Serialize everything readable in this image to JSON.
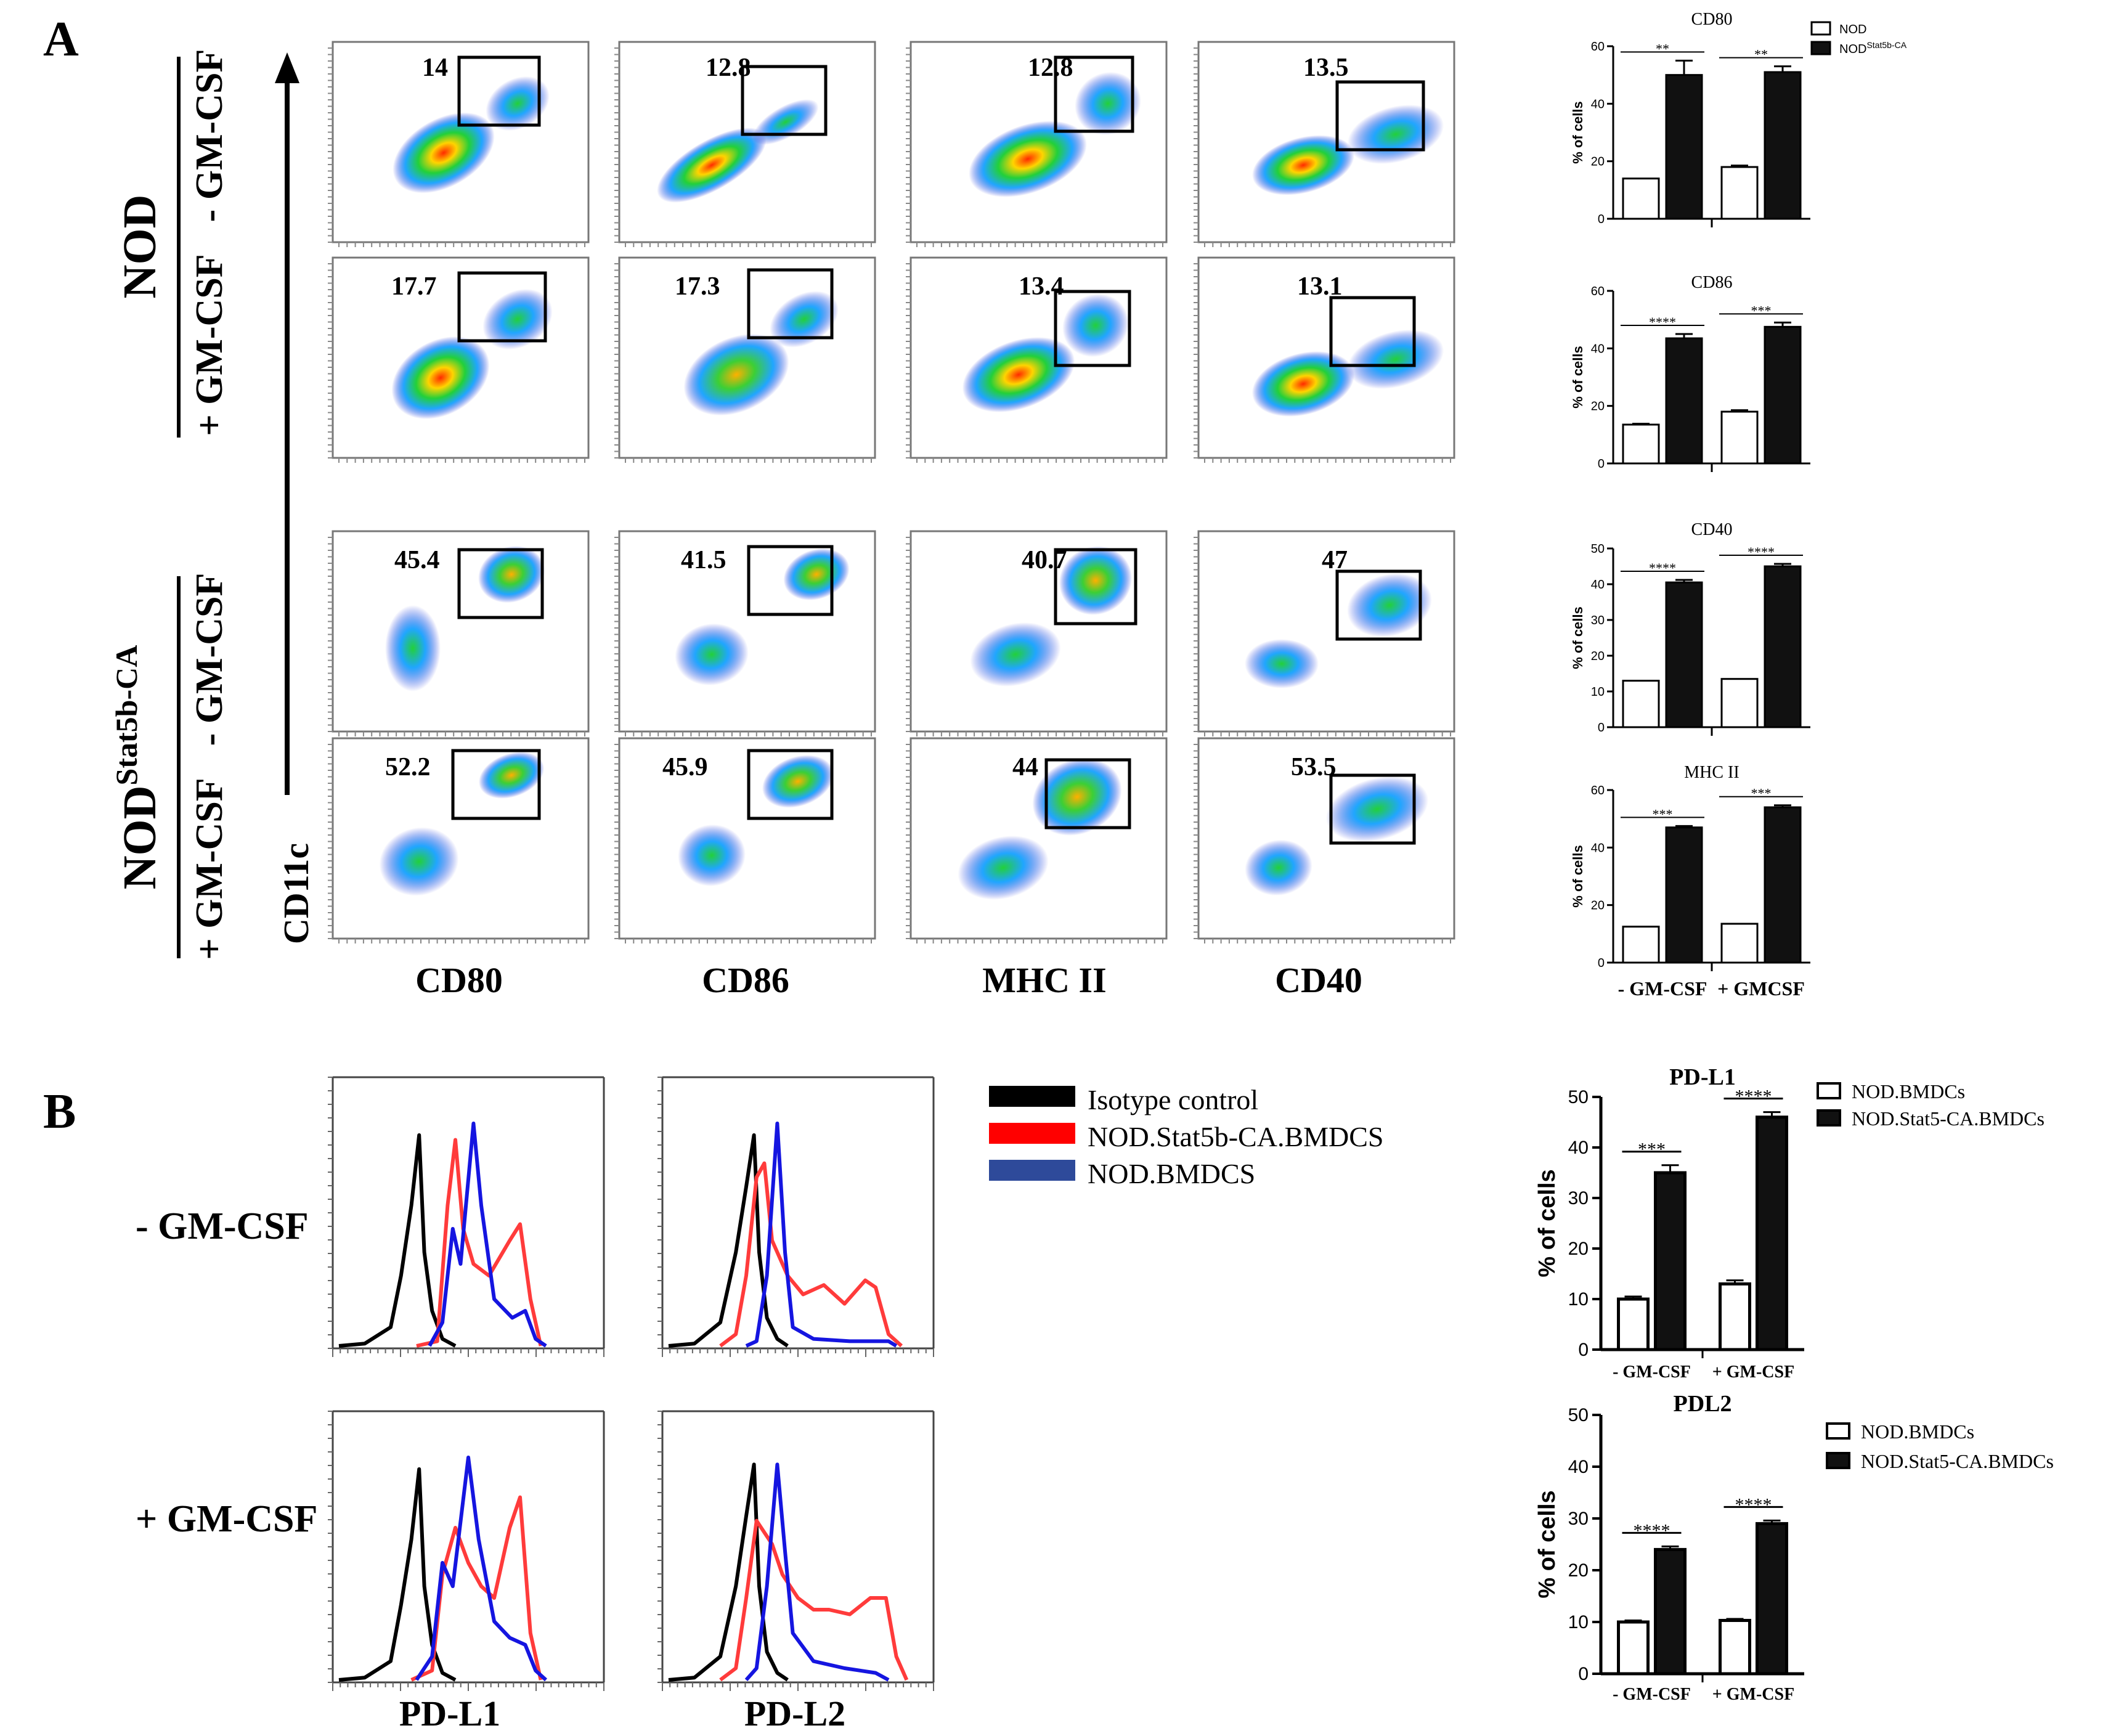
{
  "panels": {
    "a": "A",
    "b": "B"
  },
  "panel_a": {
    "row_groups": [
      {
        "strain": "NOD",
        "superscript": ""
      },
      {
        "strain": "NOD",
        "superscript": "Stat5b-CA"
      }
    ],
    "conditions": [
      "- GM-CSF",
      "+ GM-CSF"
    ],
    "y_axis_label": "CD11c",
    "columns": [
      "CD80",
      "CD86",
      "MHC II",
      "CD40"
    ],
    "gate_percentages": [
      [
        "14",
        "12.8",
        "12.8",
        "13.5"
      ],
      [
        "17.7",
        "17.3",
        "13.4",
        "13.1"
      ],
      [
        "45.4",
        "41.5",
        "40.7",
        "47"
      ],
      [
        "52.2",
        "45.9",
        "44",
        "53.5"
      ]
    ]
  },
  "panel_b": {
    "conditions": [
      "- GM-CSF",
      "+ GM-CSF"
    ],
    "x_labels": [
      "PD-L1",
      "PD-L2"
    ],
    "legend": [
      {
        "label": "Isotype control",
        "color": "#000000"
      },
      {
        "label": "NOD.Stat5b-CA.BMDCS",
        "color": "#ff0000"
      },
      {
        "label": "NOD.BMDCS",
        "color": "#2e4a9a"
      }
    ]
  },
  "chart_data": [
    {
      "type": "bar",
      "title": "CD80",
      "categories": [
        "- GM-CSF",
        "+ GMCSF"
      ],
      "series": [
        {
          "name": "NOD",
          "values": [
            14,
            18
          ],
          "errors": [
            0,
            0.5
          ]
        },
        {
          "name": "NOD",
          "superscript": "Stat5b-CA",
          "values": [
            50,
            51
          ],
          "errors": [
            5,
            2
          ]
        }
      ],
      "ylabel": "% of cells",
      "ylim": [
        0,
        60
      ],
      "yticks": [
        0,
        20,
        40,
        60
      ],
      "significance": [
        "**",
        "**"
      ]
    },
    {
      "type": "bar",
      "title": "CD86",
      "categories": [
        "- GM-CSF",
        "+ GMCSF"
      ],
      "series": [
        {
          "name": "NOD",
          "values": [
            13.5,
            18
          ],
          "errors": [
            0.3,
            0.5
          ]
        },
        {
          "name": "NOD",
          "superscript": "Stat5b-CA",
          "values": [
            43.5,
            47.5
          ],
          "errors": [
            1.5,
            1.5
          ]
        }
      ],
      "ylabel": "% of cells",
      "ylim": [
        0,
        60
      ],
      "yticks": [
        0,
        20,
        40,
        60
      ],
      "significance": [
        "****",
        "***"
      ]
    },
    {
      "type": "bar",
      "title": "CD40",
      "categories": [
        "- GM-CSF",
        "+ GMCSF"
      ],
      "series": [
        {
          "name": "NOD",
          "values": [
            13,
            13.5
          ],
          "errors": [
            0,
            0
          ]
        },
        {
          "name": "NOD",
          "superscript": "Stat5b-CA",
          "values": [
            40.5,
            45
          ],
          "errors": [
            0.7,
            0.7
          ]
        }
      ],
      "ylabel": "% of cells",
      "ylim": [
        0,
        50
      ],
      "yticks": [
        0,
        10,
        20,
        30,
        40,
        50
      ],
      "significance": [
        "****",
        "****"
      ]
    },
    {
      "type": "bar",
      "title": "MHC II",
      "categories": [
        "- GM-CSF",
        "+ GMCSF"
      ],
      "series": [
        {
          "name": "NOD",
          "values": [
            12.5,
            13.5
          ],
          "errors": [
            0,
            0
          ]
        },
        {
          "name": "NOD",
          "superscript": "Stat5b-CA",
          "values": [
            47,
            54
          ],
          "errors": [
            0.5,
            0.7
          ]
        }
      ],
      "ylabel": "% of cells",
      "ylim": [
        0,
        60
      ],
      "yticks": [
        0,
        20,
        40,
        60
      ],
      "significance": [
        "***",
        "***"
      ]
    },
    {
      "type": "bar",
      "title": "PD-L1",
      "categories": [
        "- GM-CSF",
        "+ GM-CSF"
      ],
      "series": [
        {
          "name": "NOD.BMDCs",
          "values": [
            10,
            13
          ],
          "errors": [
            0.5,
            0.7
          ]
        },
        {
          "name": "NOD.Stat5-CA.BMDCs",
          "values": [
            35,
            46
          ],
          "errors": [
            1.5,
            1
          ]
        }
      ],
      "ylabel": "% of cells",
      "ylim": [
        0,
        50
      ],
      "yticks": [
        0,
        10,
        20,
        30,
        40,
        50
      ],
      "significance": [
        "***",
        "****"
      ]
    },
    {
      "type": "bar",
      "title": "PDL2",
      "categories": [
        "- GM-CSF",
        "+ GM-CSF"
      ],
      "series": [
        {
          "name": "NOD.BMDCs",
          "values": [
            10,
            10.3
          ],
          "errors": [
            0.3,
            0.3
          ]
        },
        {
          "name": "NOD.Stat5-CA.BMDCs",
          "values": [
            24,
            29
          ],
          "errors": [
            0.6,
            0.6
          ]
        }
      ],
      "ylabel": "% of cells",
      "ylim": [
        0,
        50
      ],
      "yticks": [
        0,
        10,
        20,
        30,
        40,
        50
      ],
      "significance": [
        "****",
        "****"
      ]
    }
  ]
}
